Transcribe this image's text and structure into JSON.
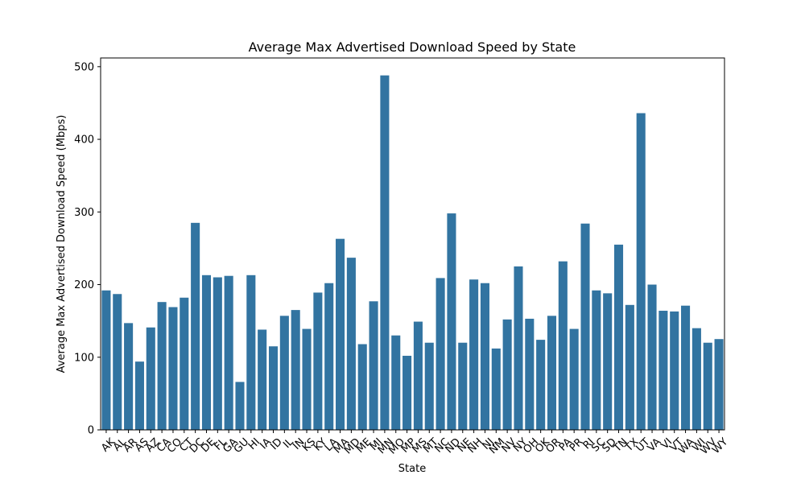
{
  "chart_data": {
    "type": "bar",
    "title": "Average Max Advertised Download Speed by State",
    "xlabel": "State",
    "ylabel": "Average Max Advertised Download Speed (Mbps)",
    "ylim": [
      0,
      512
    ],
    "yticks": [
      0,
      100,
      200,
      300,
      400,
      500
    ],
    "grid": false,
    "bar_color": "#3274a1",
    "categories": [
      "AK",
      "AL",
      "AR",
      "AS",
      "AZ",
      "CA",
      "CO",
      "CT",
      "DC",
      "DE",
      "FL",
      "GA",
      "GU",
      "HI",
      "IA",
      "ID",
      "IL",
      "IN",
      "KS",
      "KY",
      "LA",
      "MA",
      "MD",
      "ME",
      "MI",
      "MN",
      "MO",
      "MP",
      "MS",
      "MT",
      "NC",
      "ND",
      "NE",
      "NH",
      "NJ",
      "NM",
      "NV",
      "NY",
      "OH",
      "OK",
      "OR",
      "PA",
      "PR",
      "RI",
      "SC",
      "SD",
      "TN",
      "TX",
      "UT",
      "VA",
      "VI",
      "VT",
      "WA",
      "WI",
      "WV",
      "WY"
    ],
    "values": [
      192,
      187,
      147,
      94,
      141,
      176,
      169,
      182,
      285,
      213,
      210,
      212,
      66,
      213,
      138,
      115,
      157,
      165,
      139,
      189,
      202,
      263,
      237,
      118,
      177,
      488,
      130,
      102,
      149,
      120,
      209,
      298,
      120,
      207,
      202,
      112,
      152,
      225,
      153,
      124,
      157,
      232,
      139,
      284,
      192,
      188,
      255,
      172,
      436,
      200,
      164,
      163,
      171,
      140,
      120,
      125
    ]
  }
}
